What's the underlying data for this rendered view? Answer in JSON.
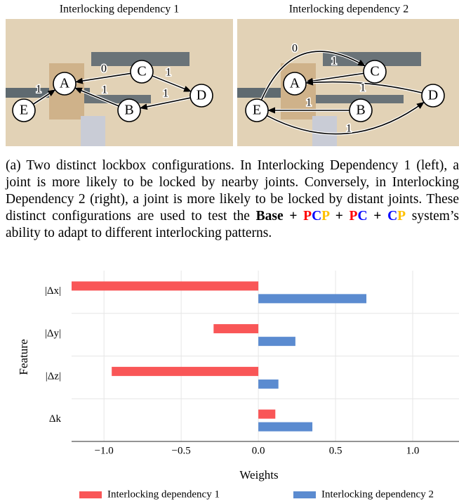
{
  "panels": [
    {
      "title": "Interlocking dependency 1",
      "nodes": [
        "A",
        "C",
        "D",
        "B",
        "E"
      ],
      "edges": [
        {
          "label": "0"
        },
        {
          "label": "1"
        },
        {
          "label": "1"
        },
        {
          "label": "1"
        },
        {
          "label": "1"
        }
      ]
    },
    {
      "title": "Interlocking dependency 2",
      "nodes": [
        "A",
        "C",
        "D",
        "B",
        "E"
      ],
      "edges": [
        {
          "label": "0"
        },
        {
          "label": "1"
        },
        {
          "label": "1"
        },
        {
          "label": "1"
        },
        {
          "label": "1"
        }
      ]
    }
  ],
  "caption": [
    {
      "text": "(a) Two distinct lockbox configurations. In Interlocking Dependency 1 (left), a joint is more likely to be locked by nearby joints. Conversely, in Interlocking Dependency 2 (right), a joint is more likely to be locked by distant joints. These distinct configurations are used to test the "
    },
    {
      "text": "Base + ",
      "bold": true
    },
    {
      "text": "P",
      "bold": true,
      "color": "#ff0000"
    },
    {
      "text": "C",
      "bold": true,
      "color": "#0000ff"
    },
    {
      "text": "P",
      "bold": true,
      "color": "#ffc000"
    },
    {
      "text": " + ",
      "bold": true
    },
    {
      "text": "P",
      "bold": true,
      "color": "#ff0000"
    },
    {
      "text": "C",
      "bold": true,
      "color": "#0000ff"
    },
    {
      "text": " + ",
      "bold": true
    },
    {
      "text": "C",
      "bold": true,
      "color": "#0000ff"
    },
    {
      "text": "P",
      "bold": true,
      "color": "#ffc000"
    },
    {
      "text": " system’s ability to adapt to different interlocking patterns."
    }
  ],
  "chart_data": {
    "type": "barh",
    "xlabel": "Weights",
    "ylabel": "Feature",
    "categories": [
      "|Δx|",
      "|Δy|",
      "|Δz|",
      "Δk"
    ],
    "series": [
      {
        "name": "Interlocking dependency 1",
        "color": "#f95657",
        "values": [
          -1.21,
          -0.29,
          -0.95,
          0.11
        ]
      },
      {
        "name": "Interlocking dependency 2",
        "color": "#5b8bd0",
        "values": [
          0.7,
          0.24,
          0.13,
          0.35
        ]
      }
    ],
    "xlim": [
      -1.21,
      1.3
    ],
    "xticks": [
      {
        "value": -1.0,
        "label": "−1.0"
      },
      {
        "value": -0.5,
        "label": "−0.5"
      },
      {
        "value": 0.0,
        "label": "0.0"
      },
      {
        "value": 0.5,
        "label": "0.5"
      },
      {
        "value": 1.0,
        "label": "1.0"
      }
    ],
    "grid": true,
    "legend": "bottom"
  }
}
